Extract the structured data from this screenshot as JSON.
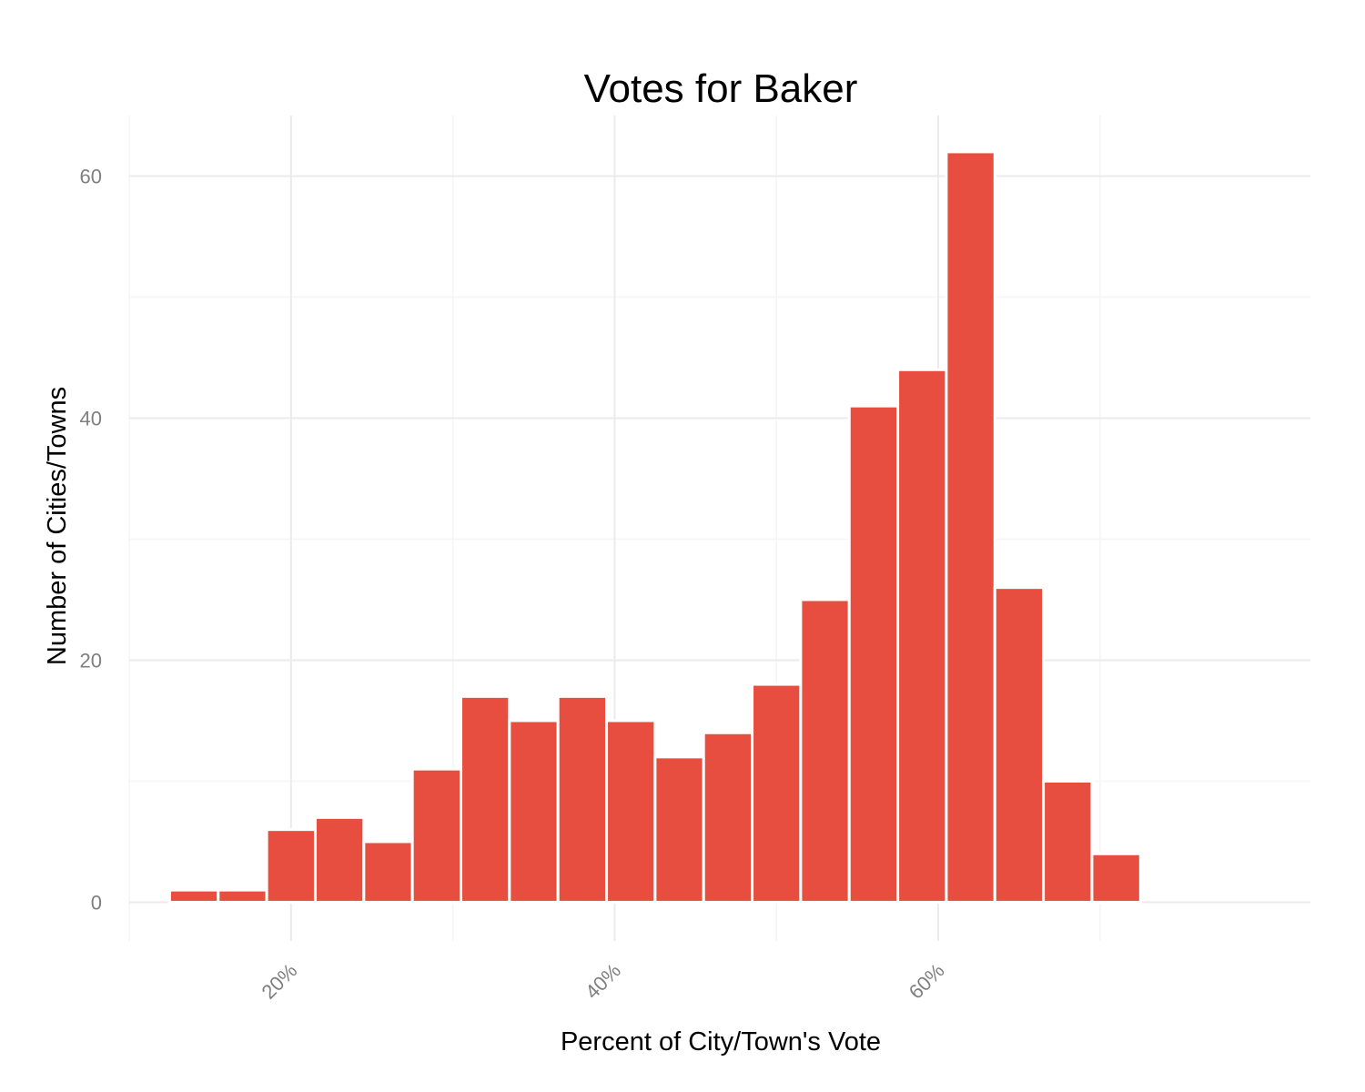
{
  "chart_data": {
    "type": "bar",
    "title": "Votes for Baker",
    "xlabel": "Percent of City/Town's Vote",
    "ylabel": "Number of Cities/Towns",
    "x_ticks": [
      {
        "value": 0.2,
        "label": "20%"
      },
      {
        "value": 0.4,
        "label": "40%"
      },
      {
        "value": 0.6,
        "label": "60%"
      }
    ],
    "y_ticks": [
      {
        "value": 0,
        "label": "0"
      },
      {
        "value": 20,
        "label": "20"
      },
      {
        "value": 40,
        "label": "40"
      },
      {
        "value": 60,
        "label": "60"
      }
    ],
    "xlim": [
      0.1,
      0.83
    ],
    "ylim": [
      -3.2,
      65
    ],
    "bin_width": 0.03,
    "bins": [
      {
        "x": 0.14,
        "count": 1
      },
      {
        "x": 0.17,
        "count": 1
      },
      {
        "x": 0.2,
        "count": 6
      },
      {
        "x": 0.23,
        "count": 7
      },
      {
        "x": 0.26,
        "count": 5
      },
      {
        "x": 0.29,
        "count": 11
      },
      {
        "x": 0.32,
        "count": 17
      },
      {
        "x": 0.35,
        "count": 15
      },
      {
        "x": 0.38,
        "count": 17
      },
      {
        "x": 0.41,
        "count": 15
      },
      {
        "x": 0.44,
        "count": 12
      },
      {
        "x": 0.47,
        "count": 14
      },
      {
        "x": 0.5,
        "count": 18
      },
      {
        "x": 0.53,
        "count": 25
      },
      {
        "x": 0.56,
        "count": 41
      },
      {
        "x": 0.59,
        "count": 44
      },
      {
        "x": 0.62,
        "count": 62
      },
      {
        "x": 0.65,
        "count": 26
      },
      {
        "x": 0.68,
        "count": 10
      },
      {
        "x": 0.71,
        "count": 4
      }
    ],
    "bar_color": "#e84e3f",
    "grid": true,
    "legend": "none"
  }
}
